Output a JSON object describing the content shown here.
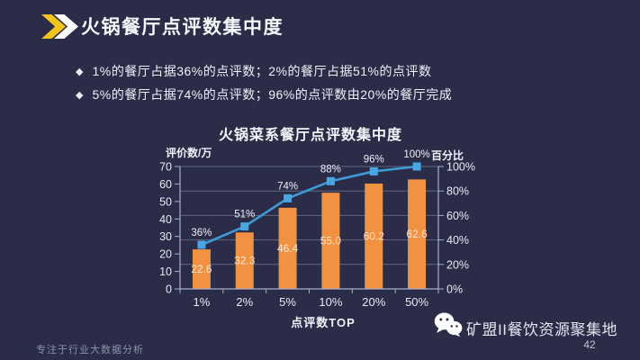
{
  "slide": {
    "title": "火锅餐厅点评数集中度",
    "bullet_marker": "◆",
    "bullets": [
      "1%的餐厅占据36%的点评数；2%的餐厅占据51%的点评数",
      "5%的餐厅占据74%的点评数；96%的点评数由20%的餐厅完成"
    ],
    "footer_left": "专注于行业大数据分析",
    "footer_right": "矿盟II餐饮资源聚集地",
    "page_number": "42"
  },
  "icons": {
    "header": "double-chevron-right-icon",
    "footer": "wechat-icon"
  },
  "colors": {
    "background": "#2A2C48",
    "bar": "#F0923F",
    "line": "#3E9BD6",
    "marker": "#47A7E2",
    "accent_gold": "#F2C318",
    "grid": "rgba(168,174,198,0.45)",
    "axis": "#A9AEC6",
    "tick_text": "#E8EAF2",
    "pct_label_text": "#EDF0F7",
    "bar_label_text": "rgba(255,255,255,0.8)"
  },
  "chart_data": {
    "type": "bar",
    "subtype": "pareto-combo-bar-line",
    "title": "火锅菜系餐厅点评数集中度",
    "xlabel": "点评数TOP",
    "ylabel_left": "评价数/万",
    "ylabel_right": "百分比",
    "categories": [
      "1%",
      "2%",
      "5%",
      "10%",
      "20%",
      "50%"
    ],
    "series": [
      {
        "name": "评价数/万",
        "type": "bar",
        "axis": "left",
        "values": [
          22.6,
          32.3,
          46.4,
          55.0,
          60.2,
          62.6
        ],
        "value_labels": [
          "22.6",
          "32.3",
          "46.4",
          "55.0",
          "60.2",
          "62.6"
        ]
      },
      {
        "name": "百分比",
        "type": "line",
        "axis": "right",
        "values": [
          36,
          51,
          74,
          88,
          96,
          100
        ],
        "value_labels": [
          "36%",
          "51%",
          "74%",
          "88%",
          "96%",
          "100%"
        ]
      }
    ],
    "ylim_left": [
      0,
      70
    ],
    "yticks_left": [
      0,
      10,
      20,
      30,
      40,
      50,
      60,
      70
    ],
    "ylim_right": [
      0,
      100
    ],
    "yticks_right": [
      0,
      20,
      40,
      60,
      80,
      100
    ],
    "grid": "horizontal gridlines at right-axis 20% intervals",
    "legend": "none"
  }
}
